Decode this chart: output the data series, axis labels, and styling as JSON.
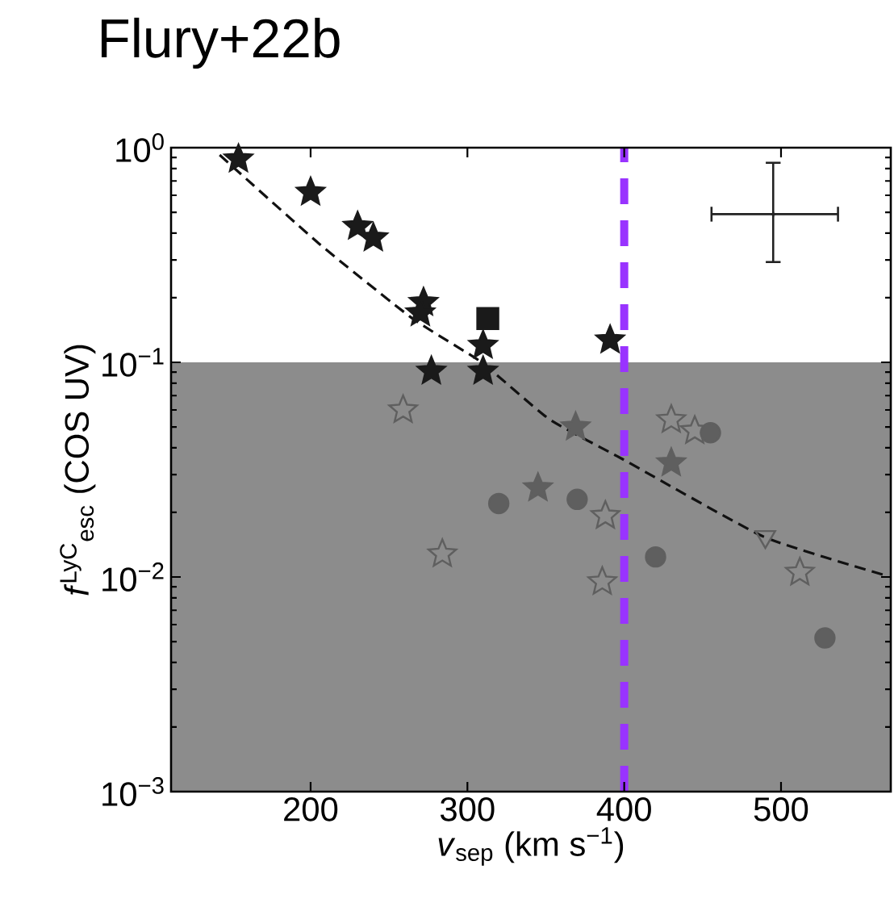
{
  "chart_data": {
    "type": "scatter",
    "title": "Flury+22b",
    "xlabel": "*v*$_{sep}$ (km s$^{−1}$)",
    "ylabel": "*f*$^{LyC}$$_{esc}$ (COS UV)",
    "xlim": [
      111,
      570
    ],
    "xticks": [
      200,
      300,
      400,
      500
    ],
    "ylim": [
      0.001,
      1
    ],
    "log": "y",
    "yticks": [
      {
        "value": 0.001,
        "label": "10$^{−3}$"
      },
      {
        "value": 0.01,
        "label": "10$^{−2}$"
      },
      {
        "value": 0.1,
        "label": "10$^{−1}$"
      },
      {
        "value": 1,
        "label": "10$^{0}$"
      }
    ],
    "bands": [
      {
        "axis": "y",
        "from": 0.001,
        "to": 0.1,
        "color": "#8c8c8c"
      }
    ],
    "ref_lines": [
      {
        "axis": "x",
        "value": 400,
        "color": "#9933ff",
        "line_style": "dashed"
      }
    ],
    "series": [
      {
        "type": "scatter",
        "marker": "star",
        "color": "#1a1a1a",
        "x": [
          154,
          200,
          230,
          240,
          272,
          270,
          310,
          310,
          277,
          391
        ],
        "values": [
          0.885,
          0.62,
          0.43,
          0.38,
          0.19,
          0.17,
          0.12,
          0.091,
          0.091,
          0.127
        ]
      },
      {
        "type": "scatter",
        "marker": "square",
        "color": "#1a1a1a",
        "x": [
          313
        ],
        "values": [
          0.16
        ]
      },
      {
        "type": "scatter",
        "marker": "star",
        "color": "#5f5f5f",
        "x": [
          369,
          345,
          430
        ],
        "values": [
          0.05,
          0.026,
          0.034
        ]
      },
      {
        "type": "scatter",
        "marker": "star-open",
        "color": "#5f5f5f",
        "x": [
          259,
          284,
          388,
          386,
          430,
          445,
          512
        ],
        "values": [
          0.06,
          0.0128,
          0.0193,
          0.0095,
          0.054,
          0.048,
          0.0105
        ]
      },
      {
        "type": "scatter",
        "marker": "circle",
        "color": "#5f5f5f",
        "x": [
          320,
          370,
          420,
          455,
          528
        ],
        "values": [
          0.022,
          0.023,
          0.0124,
          0.047,
          0.0052
        ]
      },
      {
        "type": "scatter",
        "marker": "triangle-open",
        "color": "#5f5f5f",
        "x": [
          490
        ],
        "values": [
          0.0154
        ]
      },
      {
        "type": "line",
        "marker": "none",
        "line_style": "dashed",
        "color": "#111111",
        "x": [
          142,
          206,
          265,
          309,
          352,
          399,
          489,
          566
        ],
        "values": [
          0.925,
          0.354,
          0.16,
          0.1,
          0.0545,
          0.0354,
          0.0154,
          0.0102
        ]
      },
      {
        "type": "scatter",
        "marker": "cross",
        "color": "#222222",
        "x": [
          495
        ],
        "values": [
          0.49
        ],
        "xerrors": [
          [
            455,
            537
          ]
        ],
        "errors": [
          [
            0.29,
            0.86
          ]
        ]
      }
    ]
  }
}
